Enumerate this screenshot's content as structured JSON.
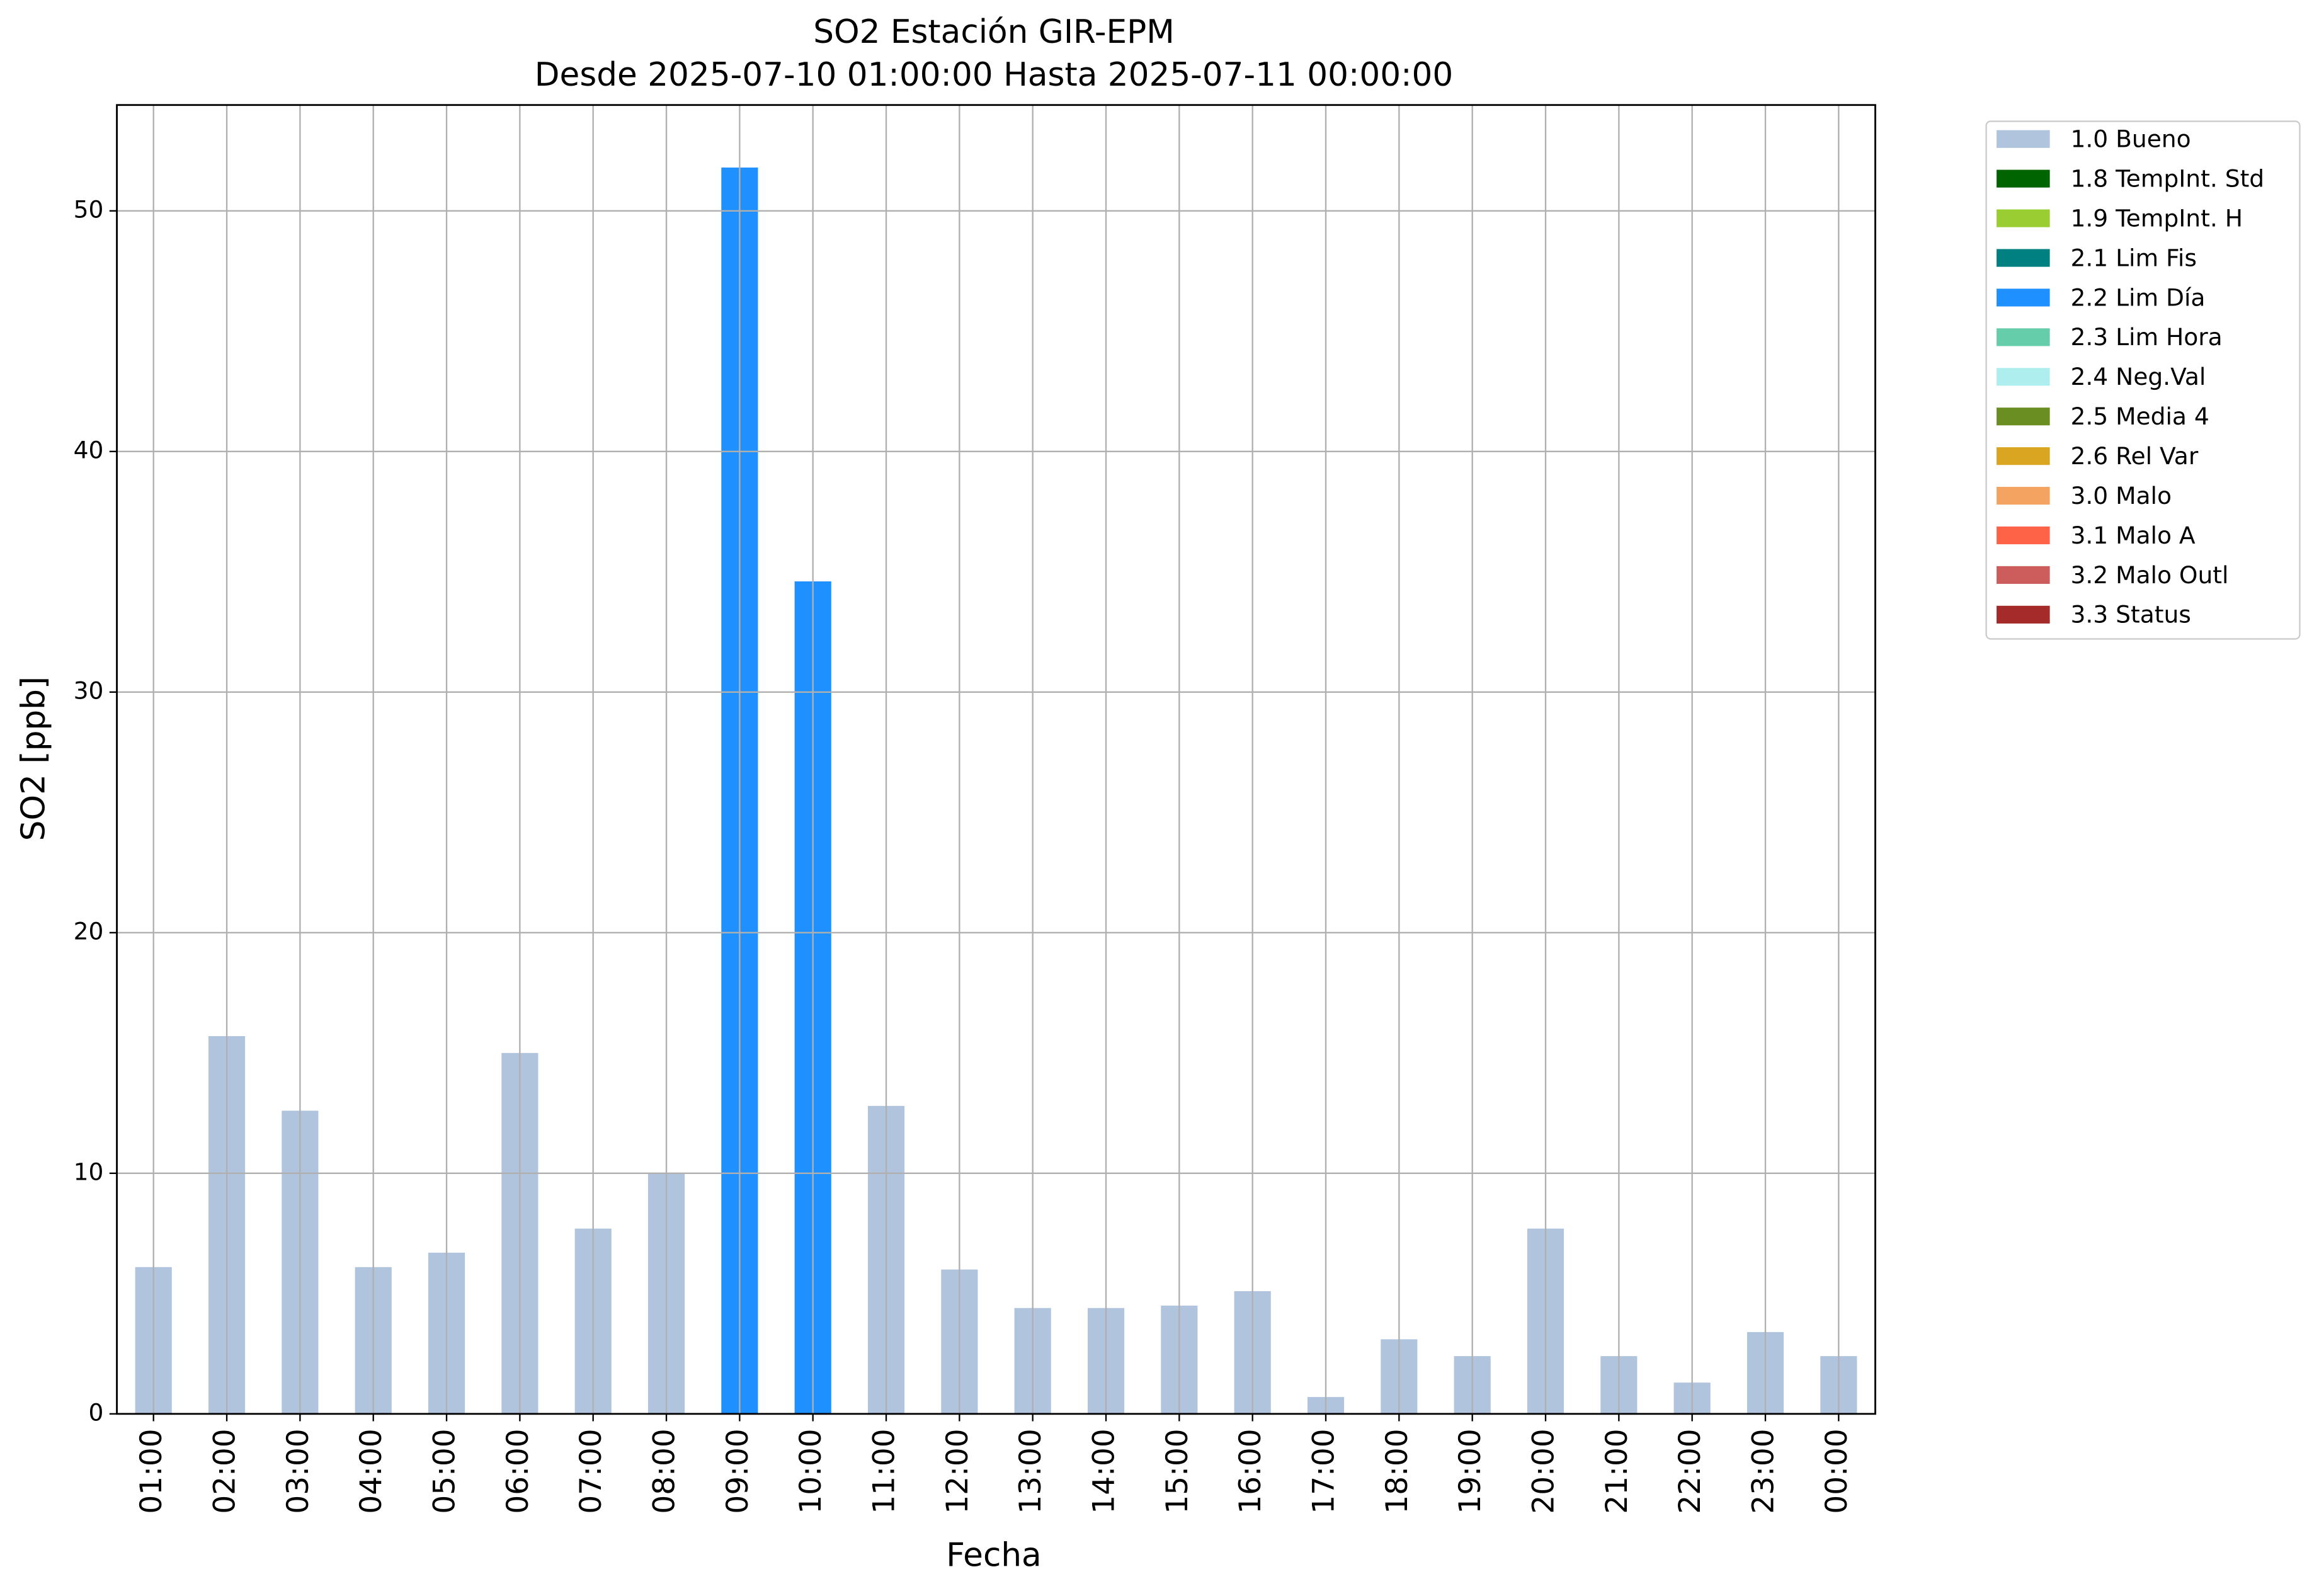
{
  "chart_data": {
    "type": "stacked-bar",
    "title": "SO2 Estación GIR-EPM",
    "subtitle": "Desde 2025-07-10 01:00:00 Hasta 2025-07-11 00:00:00",
    "x_label": "Fecha",
    "y_label": "SO2 [ppb]",
    "categories": [
      "01:00",
      "02:00",
      "03:00",
      "04:00",
      "05:00",
      "06:00",
      "07:00",
      "08:00",
      "09:00",
      "10:00",
      "11:00",
      "12:00",
      "13:00",
      "14:00",
      "15:00",
      "16:00",
      "17:00",
      "18:00",
      "19:00",
      "20:00",
      "21:00",
      "22:00",
      "23:00",
      "00:00"
    ],
    "series": [
      {
        "name": "1.0 Bueno",
        "color": "#b0c4de",
        "values": [
          6.1,
          15.7,
          12.6,
          6.1,
          6.7,
          15.0,
          7.7,
          10.0,
          null,
          null,
          12.8,
          6.0,
          4.4,
          4.4,
          4.5,
          5.1,
          0.7,
          3.1,
          2.4,
          7.7,
          2.4,
          1.3,
          3.4,
          2.4
        ]
      },
      {
        "name": "1.8 TempInt. Std",
        "color": "#006400",
        "values": [
          null,
          null,
          null,
          null,
          null,
          null,
          null,
          null,
          null,
          null,
          null,
          null,
          null,
          null,
          null,
          null,
          null,
          null,
          null,
          null,
          null,
          null,
          null,
          null
        ]
      },
      {
        "name": "1.9 TempInt. H",
        "color": "#9acd32",
        "values": [
          null,
          null,
          null,
          null,
          null,
          null,
          null,
          null,
          null,
          null,
          null,
          null,
          null,
          null,
          null,
          null,
          null,
          null,
          null,
          null,
          null,
          null,
          null,
          null
        ]
      },
      {
        "name": "2.1 Lim Fis",
        "color": "#008080",
        "values": [
          null,
          null,
          null,
          null,
          null,
          null,
          null,
          null,
          null,
          null,
          null,
          null,
          null,
          null,
          null,
          null,
          null,
          null,
          null,
          null,
          null,
          null,
          null,
          null
        ]
      },
      {
        "name": "2.2 Lim Día",
        "color": "#1e90ff",
        "values": [
          null,
          null,
          null,
          null,
          null,
          null,
          null,
          null,
          51.8,
          34.6,
          null,
          null,
          null,
          null,
          null,
          null,
          null,
          null,
          null,
          null,
          null,
          null,
          null,
          null
        ]
      },
      {
        "name": "2.3 Lim Hora",
        "color": "#66cdaa",
        "values": [
          null,
          null,
          null,
          null,
          null,
          null,
          null,
          null,
          null,
          null,
          null,
          null,
          null,
          null,
          null,
          null,
          null,
          null,
          null,
          null,
          null,
          null,
          null,
          null
        ]
      },
      {
        "name": "2.4 Neg.Val",
        "color": "#afeeee",
        "values": [
          null,
          null,
          null,
          null,
          null,
          null,
          null,
          null,
          null,
          null,
          null,
          null,
          null,
          null,
          null,
          null,
          null,
          null,
          null,
          null,
          null,
          null,
          null,
          null
        ]
      },
      {
        "name": "2.5 Media 4",
        "color": "#6b8e23",
        "values": [
          null,
          null,
          null,
          null,
          null,
          null,
          null,
          null,
          null,
          null,
          null,
          null,
          null,
          null,
          null,
          null,
          null,
          null,
          null,
          null,
          null,
          null,
          null,
          null
        ]
      },
      {
        "name": "2.6 Rel Var",
        "color": "#daa520",
        "values": [
          null,
          null,
          null,
          null,
          null,
          null,
          null,
          null,
          null,
          null,
          null,
          null,
          null,
          null,
          null,
          null,
          null,
          null,
          null,
          null,
          null,
          null,
          null,
          null
        ]
      },
      {
        "name": "3.0 Malo",
        "color": "#f4a460",
        "values": [
          null,
          null,
          null,
          null,
          null,
          null,
          null,
          null,
          null,
          null,
          null,
          null,
          null,
          null,
          null,
          null,
          null,
          null,
          null,
          null,
          null,
          null,
          null,
          null
        ]
      },
      {
        "name": "3.1 Malo A",
        "color": "#ff6347",
        "values": [
          null,
          null,
          null,
          null,
          null,
          null,
          null,
          null,
          null,
          null,
          null,
          null,
          null,
          null,
          null,
          null,
          null,
          null,
          null,
          null,
          null,
          null,
          null,
          null
        ]
      },
      {
        "name": "3.2 Malo Outl",
        "color": "#cd5c5c",
        "values": [
          null,
          null,
          null,
          null,
          null,
          null,
          null,
          null,
          null,
          null,
          null,
          null,
          null,
          null,
          null,
          null,
          null,
          null,
          null,
          null,
          null,
          null,
          null,
          null
        ]
      },
      {
        "name": "3.3 Status",
        "color": "#a52a2a",
        "values": [
          null,
          null,
          null,
          null,
          null,
          null,
          null,
          null,
          null,
          null,
          null,
          null,
          null,
          null,
          null,
          null,
          null,
          null,
          null,
          null,
          null,
          null,
          null,
          null
        ]
      }
    ],
    "ylim": [
      0,
      54.4
    ],
    "yticks": [
      0,
      10,
      20,
      30,
      40,
      50
    ],
    "grid": true
  }
}
